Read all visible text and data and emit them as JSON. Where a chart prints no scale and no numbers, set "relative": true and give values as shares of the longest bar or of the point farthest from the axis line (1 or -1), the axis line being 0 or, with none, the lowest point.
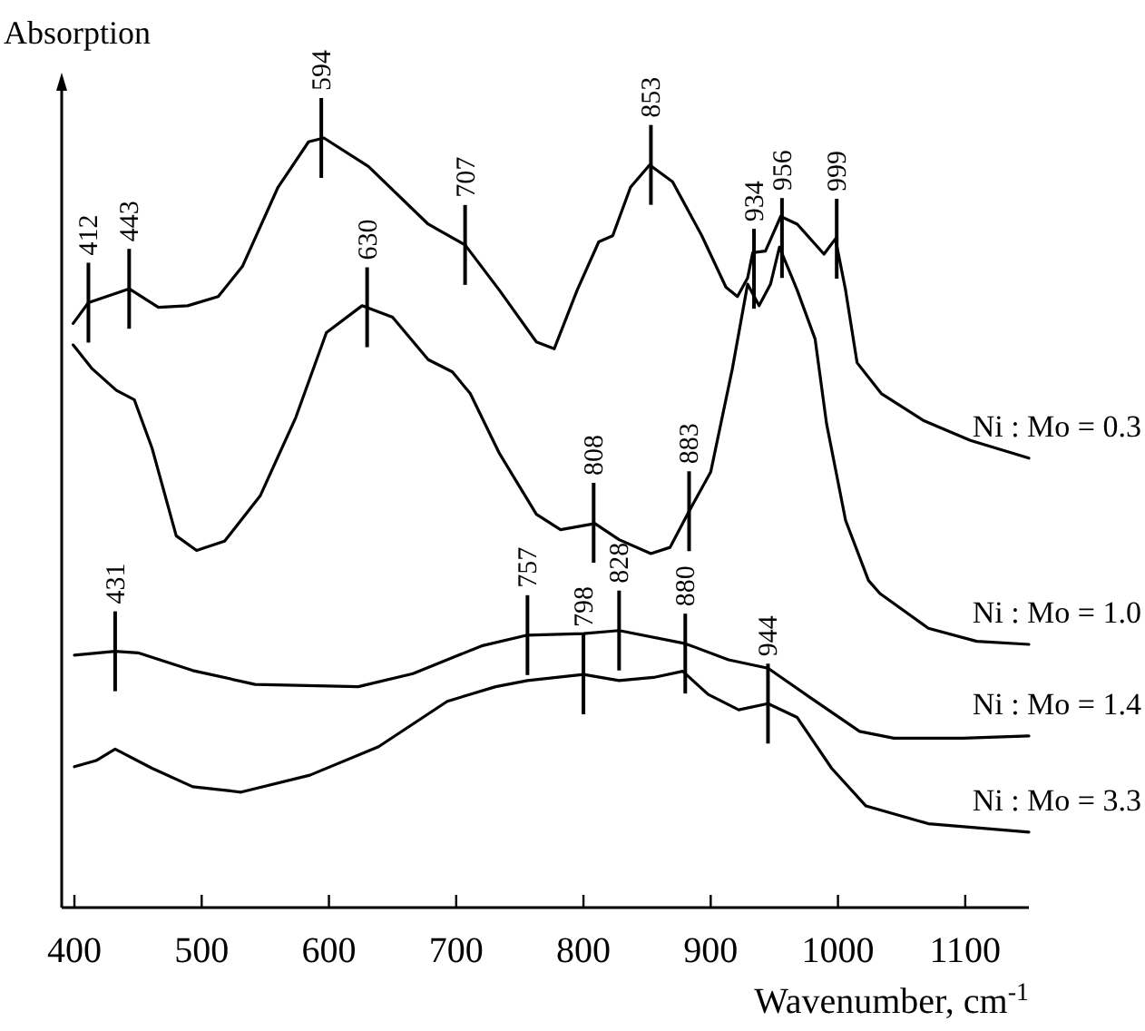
{
  "chart_data": {
    "type": "line",
    "relative": true,
    "ylabel": "Absorption",
    "xlabel": "Wavenumber, cm$^{-1}$",
    "xlim": [
      390,
      1150
    ],
    "xticks": [
      400,
      500,
      600,
      700,
      800,
      900,
      1000,
      1100
    ],
    "series": [
      {
        "name": "Ni : Mo = 0.3",
        "color": "#000000",
        "x": [
          399,
          411,
          443,
          466,
          489,
          513,
          532,
          560,
          584,
          596,
          631,
          678,
          707,
          734,
          763,
          777,
          795,
          812,
          823,
          837,
          852,
          870,
          893,
          912,
          921,
          929,
          933,
          943,
          955,
          968,
          989,
          998,
          1006,
          1015,
          1034,
          1067,
          1104,
          1150
        ],
        "values": [
          0.759,
          0.786,
          0.804,
          0.78,
          0.782,
          0.794,
          0.833,
          0.936,
          0.995,
          1.0,
          0.963,
          0.888,
          0.861,
          0.802,
          0.735,
          0.726,
          0.802,
          0.865,
          0.873,
          0.936,
          0.965,
          0.943,
          0.873,
          0.806,
          0.794,
          0.818,
          0.851,
          0.853,
          0.898,
          0.888,
          0.849,
          0.869,
          0.802,
          0.708,
          0.668,
          0.633,
          0.607,
          0.584
        ]
      },
      {
        "name": "Ni : Mo = 1.0",
        "color": "#000000",
        "x": [
          399,
          414,
          433,
          447,
          461,
          480,
          496,
          518,
          546,
          574,
          598,
          626,
          650,
          678,
          697,
          711,
          734,
          763,
          782,
          809,
          828,
          853,
          868,
          883,
          900,
          917,
          929,
          938,
          947,
          954,
          968,
          982,
          991,
          1006,
          1024,
          1033,
          1071,
          1109,
          1150
        ],
        "values": [
          0.731,
          0.7,
          0.672,
          0.66,
          0.597,
          0.483,
          0.464,
          0.476,
          0.535,
          0.637,
          0.747,
          0.782,
          0.767,
          0.712,
          0.696,
          0.668,
          0.59,
          0.511,
          0.491,
          0.499,
          0.478,
          0.46,
          0.468,
          0.515,
          0.566,
          0.7,
          0.81,
          0.782,
          0.81,
          0.858,
          0.802,
          0.739,
          0.629,
          0.503,
          0.425,
          0.408,
          0.363,
          0.346,
          0.342
        ]
      },
      {
        "name": "Ni : Mo = 1.4",
        "color": "#000000",
        "x": [
          400,
          432,
          450,
          493,
          542,
          623,
          666,
          720,
          756,
          800,
          828,
          880,
          914,
          945,
          979,
          1017,
          1044,
          1098,
          1150
        ],
        "values": [
          0.328,
          0.333,
          0.331,
          0.308,
          0.29,
          0.287,
          0.304,
          0.34,
          0.354,
          0.356,
          0.36,
          0.343,
          0.322,
          0.311,
          0.272,
          0.229,
          0.22,
          0.22,
          0.223
        ]
      },
      {
        "name": "Ni : Mo = 3.3",
        "color": "#000000",
        "x": [
          400,
          417,
          432,
          461,
          493,
          531,
          585,
          639,
          693,
          731,
          756,
          800,
          828,
          855,
          878,
          898,
          922,
          945,
          968,
          995,
          1022,
          1071,
          1150
        ],
        "values": [
          0.183,
          0.191,
          0.206,
          0.181,
          0.157,
          0.15,
          0.172,
          0.209,
          0.268,
          0.287,
          0.295,
          0.303,
          0.295,
          0.299,
          0.307,
          0.277,
          0.257,
          0.265,
          0.247,
          0.181,
          0.132,
          0.109,
          0.098
        ]
      }
    ],
    "annotations": [
      {
        "text": "412",
        "x": 411,
        "y": 0.786
      },
      {
        "text": "443",
        "x": 443,
        "y": 0.804
      },
      {
        "text": "594",
        "x": 594,
        "y": 1.0
      },
      {
        "text": "630",
        "x": 630,
        "y": 0.78
      },
      {
        "text": "707",
        "x": 707,
        "y": 0.861
      },
      {
        "text": "808",
        "x": 808,
        "y": 0.5
      },
      {
        "text": "853",
        "x": 853,
        "y": 0.965
      },
      {
        "text": "883",
        "x": 883,
        "y": 0.515
      },
      {
        "text": "934",
        "x": 934,
        "y": 0.83
      },
      {
        "text": "956",
        "x": 956,
        "y": 0.87
      },
      {
        "text": "999",
        "x": 999,
        "y": 0.869
      },
      {
        "text": "431",
        "x": 432,
        "y": 0.333
      },
      {
        "text": "757",
        "x": 756,
        "y": 0.354
      },
      {
        "text": "798",
        "x": 800,
        "y": 0.303
      },
      {
        "text": "828",
        "x": 828,
        "y": 0.36
      },
      {
        "text": "880",
        "x": 880,
        "y": 0.33
      },
      {
        "text": "944",
        "x": 945,
        "y": 0.265
      }
    ]
  }
}
